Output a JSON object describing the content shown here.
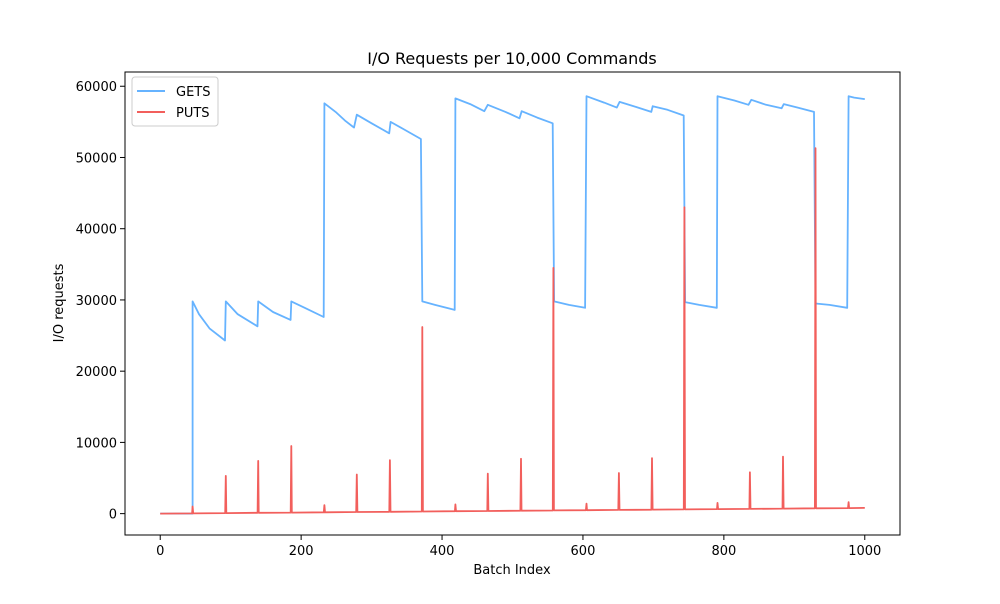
{
  "chart_data": {
    "type": "line",
    "title": "I/O Requests per 10,000 Commands",
    "xlabel": "Batch Index",
    "ylabel": "I/O requests",
    "xlim": [
      -50,
      1050
    ],
    "ylim": [
      -3000,
      62000
    ],
    "xticks": [
      0,
      200,
      400,
      600,
      800,
      1000
    ],
    "xtick_labels": [
      "0",
      "200",
      "400",
      "600",
      "800",
      "1000"
    ],
    "yticks": [
      0,
      10000,
      20000,
      30000,
      40000,
      50000,
      60000
    ],
    "ytick_labels": [
      "0",
      "10000",
      "20000",
      "30000",
      "40000",
      "50000",
      "60000"
    ],
    "grid": false,
    "legend_position": "top-left",
    "series": [
      {
        "name": "GETS",
        "color": "#66b3ff",
        "points": [
          [
            0,
            0
          ],
          [
            46,
            0
          ],
          [
            46,
            29800
          ],
          [
            55,
            28000
          ],
          [
            70,
            26000
          ],
          [
            92,
            24300
          ],
          [
            93,
            29800
          ],
          [
            110,
            28000
          ],
          [
            138,
            26300
          ],
          [
            139,
            29800
          ],
          [
            160,
            28300
          ],
          [
            185,
            27200
          ],
          [
            186,
            29800
          ],
          [
            205,
            28900
          ],
          [
            232,
            27600
          ],
          [
            233,
            57600
          ],
          [
            250,
            56300
          ],
          [
            262,
            55200
          ],
          [
            275,
            54200
          ],
          [
            279,
            56000
          ],
          [
            300,
            54800
          ],
          [
            325,
            53400
          ],
          [
            327,
            55000
          ],
          [
            345,
            54000
          ],
          [
            370,
            52600
          ],
          [
            372,
            29800
          ],
          [
            390,
            29300
          ],
          [
            418,
            28600
          ],
          [
            419,
            58300
          ],
          [
            440,
            57500
          ],
          [
            460,
            56500
          ],
          [
            465,
            57400
          ],
          [
            490,
            56400
          ],
          [
            510,
            55500
          ],
          [
            513,
            56500
          ],
          [
            535,
            55600
          ],
          [
            557,
            54800
          ],
          [
            559,
            29800
          ],
          [
            580,
            29300
          ],
          [
            603,
            28900
          ],
          [
            605,
            58600
          ],
          [
            630,
            57700
          ],
          [
            648,
            57000
          ],
          [
            652,
            57800
          ],
          [
            675,
            57100
          ],
          [
            697,
            56400
          ],
          [
            699,
            57200
          ],
          [
            720,
            56700
          ],
          [
            743,
            55900
          ],
          [
            745,
            29700
          ],
          [
            765,
            29300
          ],
          [
            790,
            28900
          ],
          [
            791,
            58600
          ],
          [
            815,
            58000
          ],
          [
            835,
            57400
          ],
          [
            839,
            58100
          ],
          [
            860,
            57400
          ],
          [
            882,
            56900
          ],
          [
            885,
            57500
          ],
          [
            905,
            57000
          ],
          [
            928,
            56400
          ],
          [
            930,
            29500
          ],
          [
            950,
            29300
          ],
          [
            975,
            28900
          ],
          [
            977,
            58600
          ],
          [
            985,
            58400
          ],
          [
            1000,
            58200
          ]
        ]
      },
      {
        "name": "PUTS",
        "color": "#f25f5c",
        "baseline": [
          [
            0,
            0
          ],
          [
            250,
            200
          ],
          [
            500,
            400
          ],
          [
            750,
            600
          ],
          [
            1000,
            800
          ]
        ],
        "spikes": [
          [
            46,
            1000
          ],
          [
            93,
            5300
          ],
          [
            139,
            7400
          ],
          [
            186,
            9500
          ],
          [
            233,
            1200
          ],
          [
            279,
            5500
          ],
          [
            326,
            7500
          ],
          [
            372,
            26200
          ],
          [
            419,
            1300
          ],
          [
            465,
            5600
          ],
          [
            512,
            7700
          ],
          [
            558,
            34500
          ],
          [
            605,
            1400
          ],
          [
            651,
            5700
          ],
          [
            698,
            7800
          ],
          [
            744,
            43000
          ],
          [
            791,
            1500
          ],
          [
            837,
            5800
          ],
          [
            884,
            8000
          ],
          [
            930,
            51300
          ],
          [
            977,
            1600
          ]
        ]
      }
    ]
  }
}
